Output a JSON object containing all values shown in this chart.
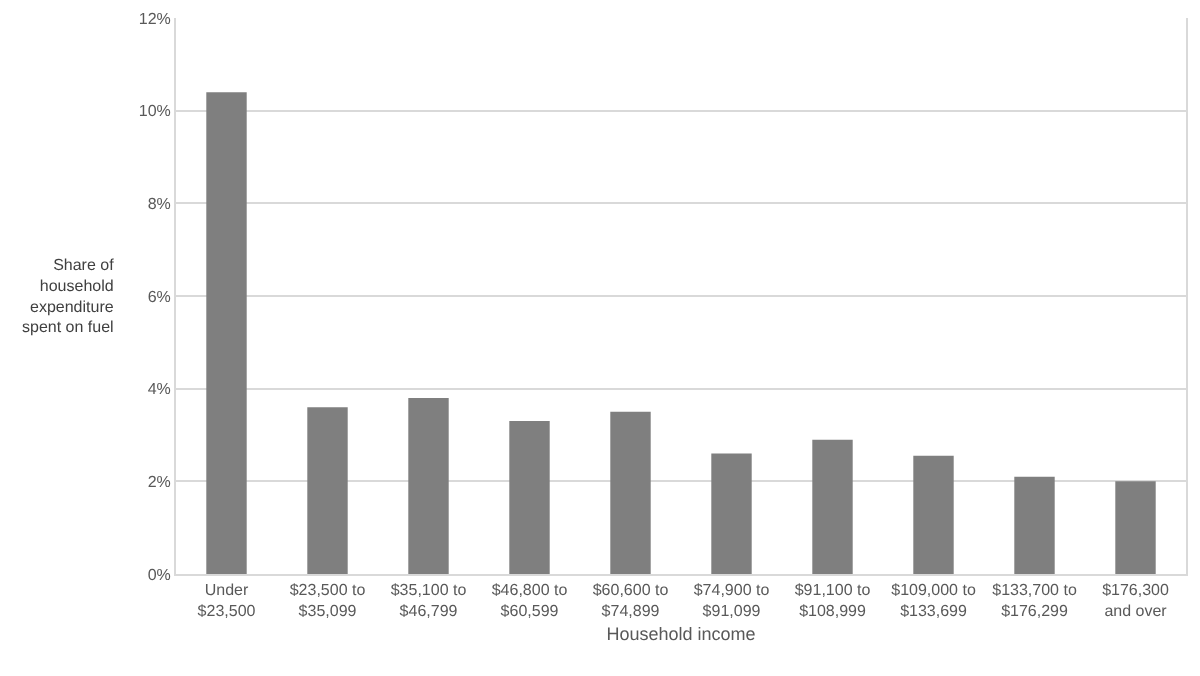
{
  "chart_data": {
    "type": "bar",
    "xlabel": "Household income",
    "ylabel": "Share of\nhousehold\nexpenditure\nspent on fuel",
    "categories": [
      "Under\n$23,500",
      "$23,500 to\n$35,099",
      "$35,100 to\n$46,799",
      "$46,800 to\n$60,599",
      "$60,600 to\n$74,899",
      "$74,900 to\n$91,099",
      "$91,100 to\n$108,999",
      "$109,000 to\n$133,699",
      "$133,700 to\n$176,299",
      "$176,300\nand over"
    ],
    "values": [
      10.4,
      3.6,
      3.8,
      3.3,
      3.5,
      2.6,
      2.9,
      2.55,
      2.1,
      2.0
    ],
    "color": "#7f7f7f",
    "ylim": [
      0,
      12
    ],
    "yticks": [
      {
        "value": 0,
        "label": "0%"
      },
      {
        "value": 2,
        "label": "2%"
      },
      {
        "value": 4,
        "label": "4%"
      },
      {
        "value": 6,
        "label": "6%"
      },
      {
        "value": 8,
        "label": "8%"
      },
      {
        "value": 10,
        "label": "10%"
      },
      {
        "value": 12,
        "label": "12%"
      }
    ],
    "grid": "y"
  }
}
